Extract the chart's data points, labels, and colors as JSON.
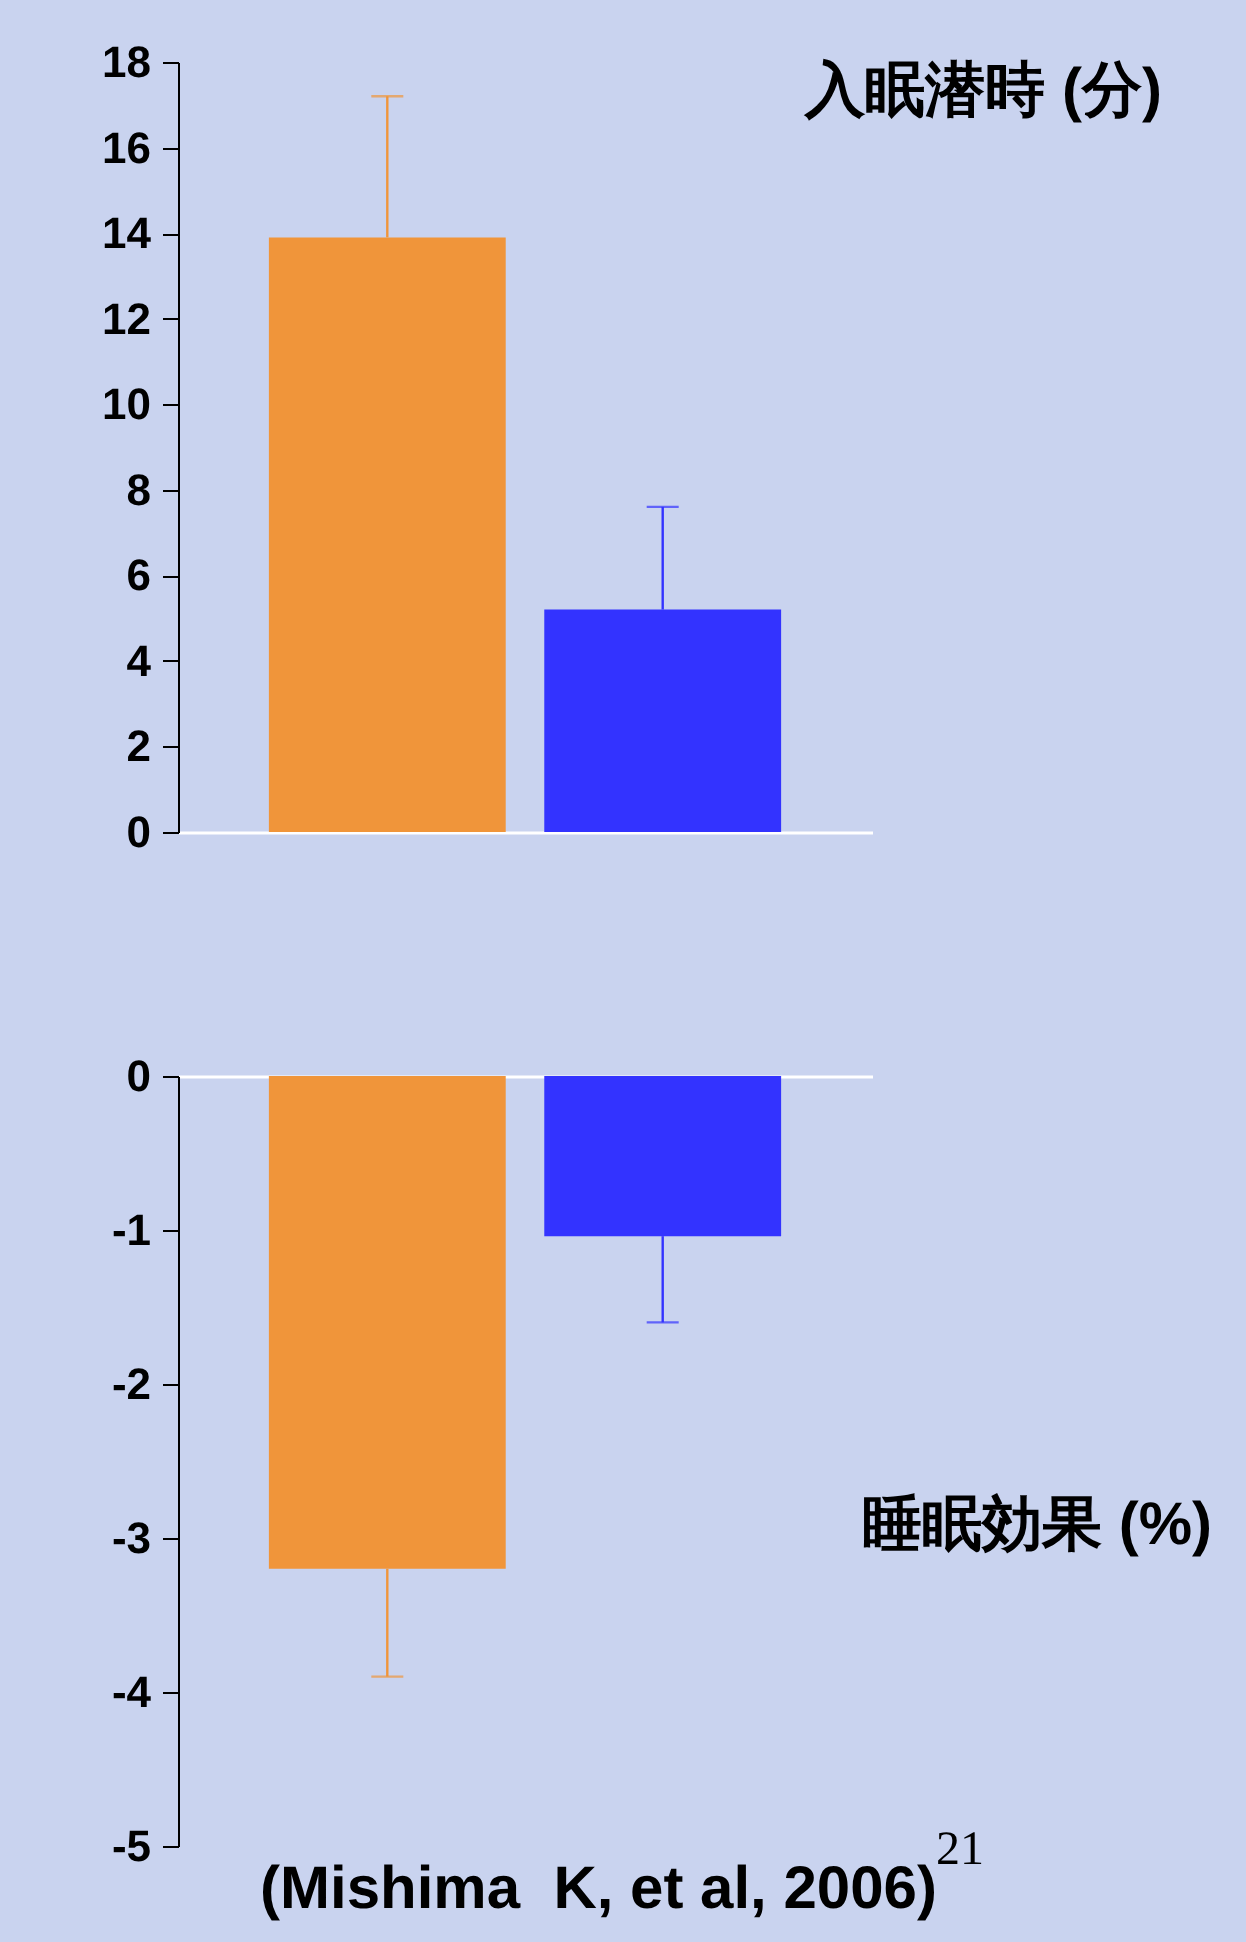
{
  "chart_data": [
    {
      "type": "bar",
      "title": "入眠潜時 (分)",
      "categories": [
        null,
        null
      ],
      "values": [
        13.9,
        5.2
      ],
      "colors": [
        "#f0953a",
        "#3333ff"
      ],
      "errors": [
        [
          13.9,
          17.2
        ],
        [
          5.2,
          7.6
        ]
      ],
      "ylim": [
        0,
        18
      ],
      "yticks": [
        0,
        2,
        4,
        6,
        8,
        10,
        12,
        14,
        16,
        18
      ],
      "tick_labels": "y"
    },
    {
      "type": "bar",
      "title": "睡眠効果 (%)",
      "categories": [
        null,
        null
      ],
      "values": [
        -3.2,
        -1.04
      ],
      "colors": [
        "#f0953a",
        "#3333ff"
      ],
      "errors": [
        [
          -3.9,
          -3.2
        ],
        [
          -1.6,
          -1.04
        ]
      ],
      "ylim": [
        -5,
        0
      ],
      "yticks": [
        -5,
        -4,
        -3,
        -2,
        -1,
        0
      ],
      "tick_labels": "y",
      "annotations": [
        "(Mishima  K, et al, 2006)",
        "21"
      ]
    }
  ]
}
